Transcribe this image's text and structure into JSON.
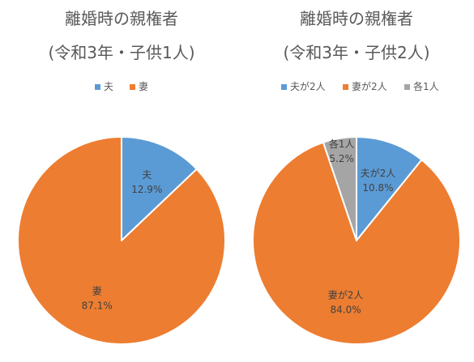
{
  "chart_data": [
    {
      "type": "pie",
      "title": "離婚時の親権者",
      "subtitle": "(令和3年・子供1人)",
      "legend_position": "top",
      "series": [
        {
          "name": "夫",
          "value": 12.9,
          "value_label": "12.9%",
          "color": "#5B9BD5"
        },
        {
          "name": "妻",
          "value": 87.1,
          "value_label": "87.1%",
          "color": "#ED7D31"
        }
      ]
    },
    {
      "type": "pie",
      "title": "離婚時の親権者",
      "subtitle": "(令和3年・子供2人)",
      "legend_position": "top",
      "series": [
        {
          "name": "夫が2人",
          "value": 10.8,
          "value_label": "10.8%",
          "color": "#5B9BD5"
        },
        {
          "name": "妻が2人",
          "value": 84.0,
          "value_label": "84.0%",
          "color": "#ED7D31"
        },
        {
          "name": "各1人",
          "value": 5.2,
          "value_label": "5.2%",
          "color": "#A5A5A5"
        }
      ]
    }
  ]
}
